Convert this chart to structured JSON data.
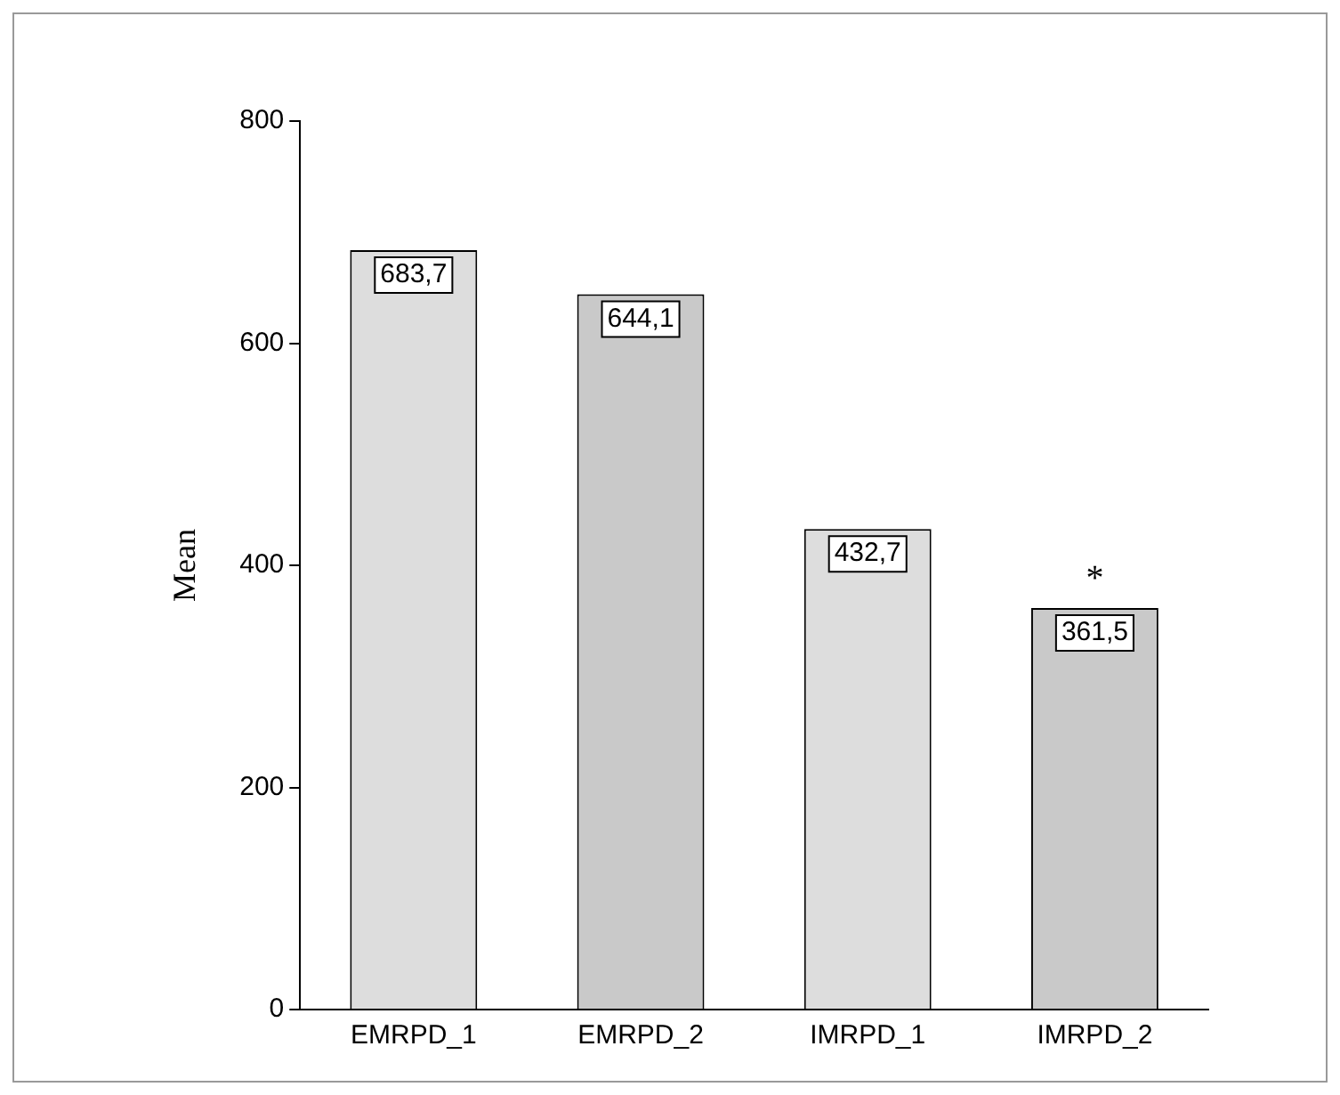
{
  "chart_data": {
    "type": "bar",
    "ylabel": "Mean",
    "categories": [
      "EMRPD_1",
      "EMRPD_2",
      "IMRPD_1",
      "IMRPD_2"
    ],
    "values": [
      683.7,
      644.1,
      432.7,
      361.5
    ],
    "value_labels": [
      "683,7",
      "644,1",
      "432,7",
      "361,5"
    ],
    "colors": [
      "#dddddd",
      "#c9c9c9",
      "#dddddd",
      "#c9c9c9"
    ],
    "ylim": [
      0,
      800
    ],
    "yticks": [
      0,
      200,
      400,
      600,
      800
    ],
    "grid": false,
    "legend": false,
    "annotations": [
      "*"
    ]
  }
}
